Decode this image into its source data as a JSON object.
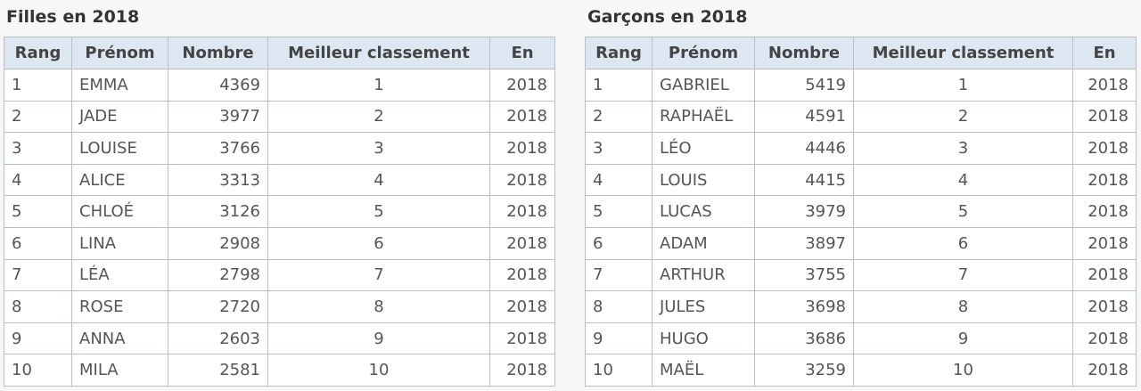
{
  "tables": [
    {
      "title": "Filles en 2018",
      "headers": [
        "Rang",
        "Prénom",
        "Nombre",
        "Meilleur classement",
        "En"
      ],
      "rows": [
        [
          "1",
          "EMMA",
          "4369",
          "1",
          "2018"
        ],
        [
          "2",
          "JADE",
          "3977",
          "2",
          "2018"
        ],
        [
          "3",
          "LOUISE",
          "3766",
          "3",
          "2018"
        ],
        [
          "4",
          "ALICE",
          "3313",
          "4",
          "2018"
        ],
        [
          "5",
          "CHLOÉ",
          "3126",
          "5",
          "2018"
        ],
        [
          "6",
          "LINA",
          "2908",
          "6",
          "2018"
        ],
        [
          "7",
          "LÉA",
          "2798",
          "7",
          "2018"
        ],
        [
          "8",
          "ROSE",
          "2720",
          "8",
          "2018"
        ],
        [
          "9",
          "ANNA",
          "2603",
          "9",
          "2018"
        ],
        [
          "10",
          "MILA",
          "2581",
          "10",
          "2018"
        ]
      ]
    },
    {
      "title": "Garçons en 2018",
      "headers": [
        "Rang",
        "Prénom",
        "Nombre",
        "Meilleur classement",
        "En"
      ],
      "rows": [
        [
          "1",
          "GABRIEL",
          "5419",
          "1",
          "2018"
        ],
        [
          "2",
          "RAPHAËL",
          "4591",
          "2",
          "2018"
        ],
        [
          "3",
          "LÉO",
          "4446",
          "3",
          "2018"
        ],
        [
          "4",
          "LOUIS",
          "4415",
          "4",
          "2018"
        ],
        [
          "5",
          "LUCAS",
          "3979",
          "5",
          "2018"
        ],
        [
          "6",
          "ADAM",
          "3897",
          "6",
          "2018"
        ],
        [
          "7",
          "ARTHUR",
          "3755",
          "7",
          "2018"
        ],
        [
          "8",
          "JULES",
          "3698",
          "8",
          "2018"
        ],
        [
          "9",
          "HUGO",
          "3686",
          "9",
          "2018"
        ],
        [
          "10",
          "MAËL",
          "3259",
          "10",
          "2018"
        ]
      ]
    }
  ]
}
